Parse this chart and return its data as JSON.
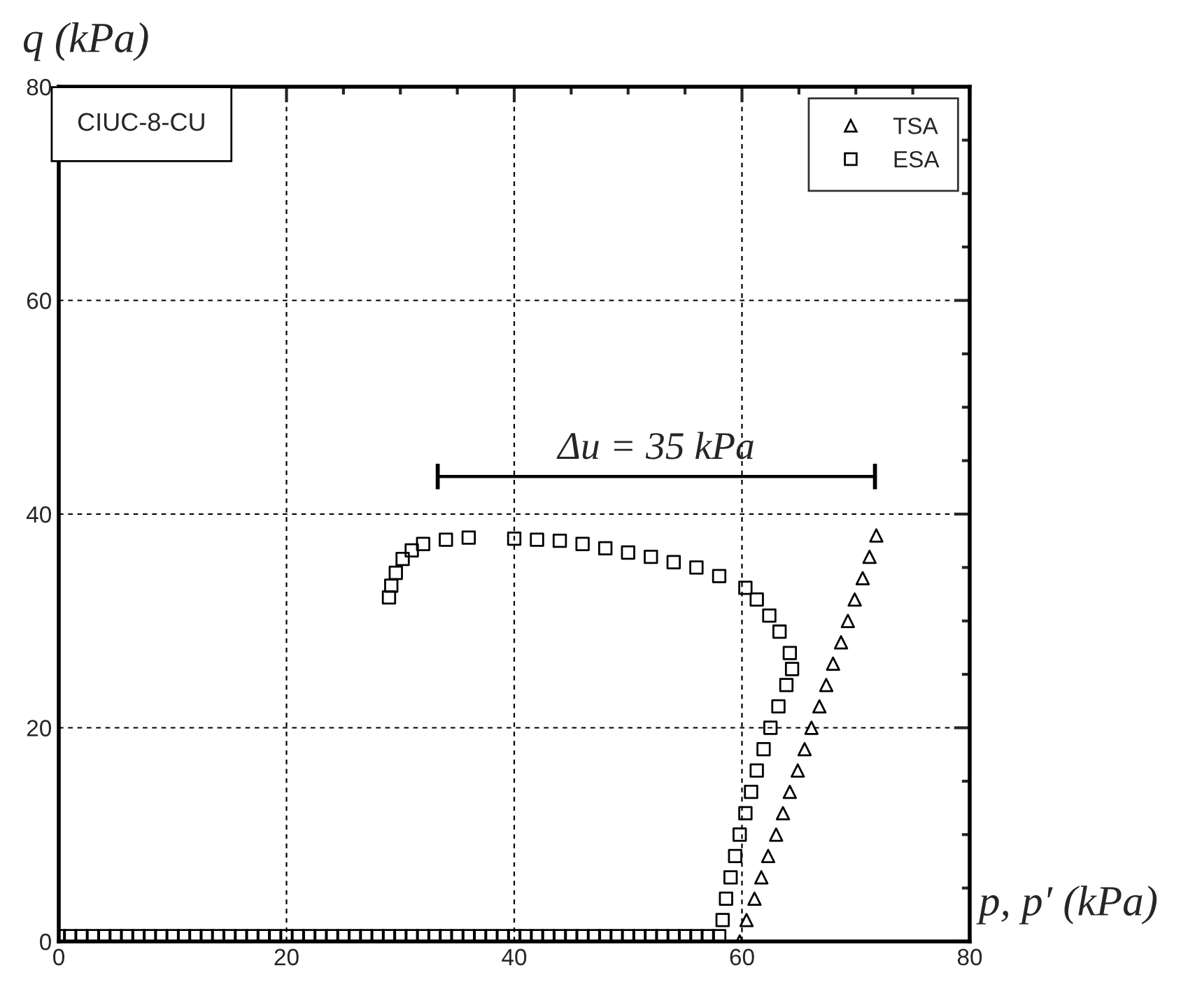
{
  "chart_data": {
    "type": "scatter",
    "xlabel": "p, p′ (kPa)",
    "ylabel": "q (kPa)",
    "xlim": [
      0,
      80
    ],
    "ylim": [
      0,
      80
    ],
    "xticks": [
      0,
      20,
      40,
      60,
      80
    ],
    "yticks": [
      0,
      20,
      40,
      60,
      80
    ],
    "grid": true,
    "legend": "top right",
    "annotations": [
      "CIUC-8-CU",
      "Δu = 35 kPa"
    ],
    "series": [
      {
        "name": "TSA",
        "color": "#000000",
        "marker": "triangle",
        "x": [
          59.8,
          60.4,
          61.1,
          61.7,
          62.3,
          63.0,
          63.6,
          64.2,
          64.9,
          65.5,
          66.1,
          66.8,
          67.4,
          68.0,
          68.7,
          69.3,
          69.9,
          70.6,
          71.2,
          71.8
        ],
        "values": [
          0,
          2,
          4,
          6,
          8,
          10,
          12,
          14,
          16,
          18,
          20,
          22,
          24,
          26,
          28,
          30,
          32,
          34,
          36,
          38
        ]
      },
      {
        "name": "ESA",
        "color": "#000000",
        "marker": "square",
        "x": [
          0,
          1,
          2,
          3,
          4,
          5,
          6,
          7,
          8,
          9,
          10,
          11,
          12,
          13,
          14,
          15,
          16,
          17,
          18,
          19,
          20,
          21,
          22,
          23,
          24,
          25,
          26,
          27,
          28,
          29,
          30,
          31,
          32,
          33,
          34,
          35,
          36,
          37,
          38,
          39,
          40,
          41,
          42,
          43,
          44,
          45,
          46,
          47,
          48,
          49,
          50,
          51,
          52,
          53,
          54,
          55,
          56,
          57,
          58,
          58.3,
          58.6,
          59,
          59.4,
          59.8,
          60.3,
          60.8,
          61.3,
          61.9,
          62.5,
          63.2,
          63.9,
          64.4,
          64.2,
          63.3,
          62.4,
          61.3,
          60.3,
          58,
          56,
          54,
          52,
          50,
          48,
          46,
          44,
          42,
          40,
          36,
          34,
          32,
          31,
          30.2,
          29.6,
          29.2,
          29
        ],
        "values": [
          0.5,
          0.5,
          0.5,
          0.5,
          0.5,
          0.5,
          0.5,
          0.5,
          0.5,
          0.5,
          0.5,
          0.5,
          0.5,
          0.5,
          0.5,
          0.5,
          0.5,
          0.5,
          0.5,
          0.5,
          0.5,
          0.5,
          0.5,
          0.5,
          0.5,
          0.5,
          0.5,
          0.5,
          0.5,
          0.5,
          0.5,
          0.5,
          0.5,
          0.5,
          0.5,
          0.5,
          0.5,
          0.5,
          0.5,
          0.5,
          0.5,
          0.5,
          0.5,
          0.5,
          0.5,
          0.5,
          0.5,
          0.5,
          0.5,
          0.5,
          0.5,
          0.5,
          0.5,
          0.5,
          0.5,
          0.5,
          0.5,
          0.5,
          0.5,
          2,
          4,
          6,
          8,
          10,
          12,
          14,
          16,
          18,
          20,
          22,
          24,
          25.5,
          27,
          29,
          30.5,
          32,
          33.1,
          34.2,
          35,
          35.5,
          36,
          36.4,
          36.8,
          37.2,
          37.5,
          37.6,
          37.7,
          37.8,
          37.6,
          37.2,
          36.6,
          35.8,
          34.5,
          33.3,
          32.2
        ]
      }
    ]
  }
}
